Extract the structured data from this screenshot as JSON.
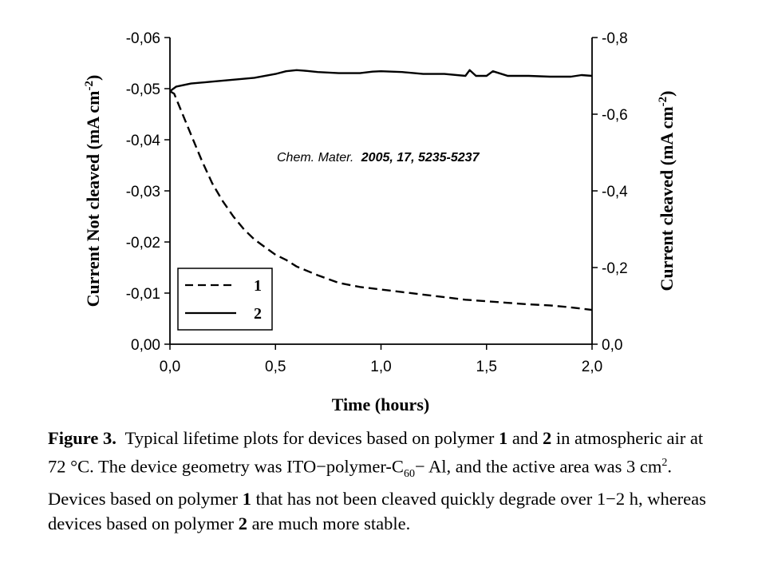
{
  "chart_data": {
    "type": "line",
    "xlabel": "Time (hours)",
    "ylabel_left": "Current Not cleaved (mA cm^-2)",
    "ylabel_right": "Current cleaved (mA cm^-2)",
    "xlim": [
      0.0,
      2.0
    ],
    "ylim_left": [
      0.0,
      -0.06
    ],
    "ylim_right": [
      0.0,
      -0.8
    ],
    "x_ticks": [
      "0,0",
      "0,5",
      "1,0",
      "1,5",
      "2,0"
    ],
    "y_ticks_left": [
      "0,00",
      "-0,01",
      "-0,02",
      "-0,03",
      "-0,04",
      "-0,05",
      "-0,06"
    ],
    "y_ticks_right": [
      "0,0",
      "-0,2",
      "-0,4",
      "-0,6",
      "-0,8"
    ],
    "grid": false,
    "legend_position": "bottom-left",
    "series": [
      {
        "name": "1",
        "axis": "left",
        "style": "dashed",
        "x": [
          0.0,
          0.02,
          0.05,
          0.1,
          0.15,
          0.2,
          0.25,
          0.3,
          0.35,
          0.4,
          0.45,
          0.5,
          0.55,
          0.6,
          0.7,
          0.8,
          0.9,
          1.0,
          1.1,
          1.2,
          1.3,
          1.4,
          1.5,
          1.6,
          1.7,
          1.8,
          1.9,
          2.0
        ],
        "values": [
          -0.0495,
          -0.049,
          -0.046,
          -0.041,
          -0.036,
          -0.0315,
          -0.028,
          -0.025,
          -0.0225,
          -0.0205,
          -0.019,
          -0.0175,
          -0.0165,
          -0.0152,
          -0.0135,
          -0.012,
          -0.0112,
          -0.0107,
          -0.0102,
          -0.0097,
          -0.0092,
          -0.0087,
          -0.0084,
          -0.0081,
          -0.0078,
          -0.0076,
          -0.0072,
          -0.0067
        ]
      },
      {
        "name": "2",
        "axis": "right",
        "style": "solid",
        "x": [
          0.0,
          0.03,
          0.1,
          0.2,
          0.3,
          0.4,
          0.5,
          0.55,
          0.6,
          0.65,
          0.7,
          0.8,
          0.9,
          0.96,
          1.0,
          1.1,
          1.2,
          1.3,
          1.4,
          1.42,
          1.45,
          1.5,
          1.53,
          1.6,
          1.7,
          1.8,
          1.9,
          1.95,
          2.0
        ],
        "values": [
          -0.66,
          -0.672,
          -0.68,
          -0.685,
          -0.69,
          -0.695,
          -0.705,
          -0.712,
          -0.715,
          -0.713,
          -0.71,
          -0.707,
          -0.707,
          -0.711,
          -0.712,
          -0.71,
          -0.705,
          -0.705,
          -0.7,
          -0.715,
          -0.7,
          -0.7,
          -0.712,
          -0.7,
          -0.7,
          -0.698,
          -0.698,
          -0.702,
          -0.7
        ]
      }
    ],
    "annotation": "Chem. Mater. 2005, 17, 5235-5237"
  },
  "legend": {
    "item1_label": "1",
    "item2_label": "2"
  },
  "citation": {
    "journal": "Chem. Mater.",
    "details": "2005, 17, 5235-5237"
  },
  "caption": {
    "label": "Figure 3.",
    "s1": "Typical lifetime plots for devices based on polymer",
    "p1": "1",
    "s2": "and",
    "p2": "2",
    "s3": "in atmospheric air at 72 °C. The device geometry was ITO−polymer-C",
    "sub60": "60",
    "s4": "− Al, and the active area was 3 cm",
    "sup2": "2",
    "s5": ". Devices based on polymer",
    "p3": "1",
    "s6": "that has not been cleaved quickly degrade over 1−2 h, whereas devices based on polymer",
    "p4": "2",
    "s7": "are much more stable."
  }
}
